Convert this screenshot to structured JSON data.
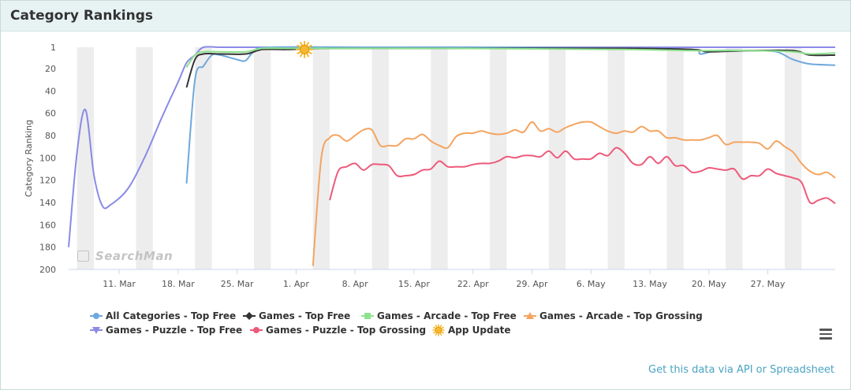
{
  "panel": {
    "title": "Category Rankings",
    "api_link": "Get this data via API or Spreadsheet",
    "watermark": "SearchMan"
  },
  "colors": {
    "header_bg": "#e7f3f3",
    "weekend_band": "#ededed",
    "all_categories": "#6fa8dc",
    "games_top_free": "#333333",
    "games_arcade_top_free": "#8ee28e",
    "games_arcade_top_grossing": "#f4a460",
    "games_puzzle_top_free": "#8a8ae6",
    "games_puzzle_top_grossing": "#ee5a7a",
    "app_update": "#f5b82e"
  },
  "chart_data": {
    "type": "line",
    "title": "",
    "ylabel": "Category Ranking",
    "y_reversed": true,
    "ylim": [
      1,
      200
    ],
    "yticks": [
      1,
      20,
      40,
      60,
      80,
      100,
      120,
      140,
      160,
      180,
      200
    ],
    "xlim": [
      "2018-03-05",
      "2018-06-04"
    ],
    "xticks": [
      {
        "date": "2018-03-11",
        "label": "11. Mar"
      },
      {
        "date": "2018-03-18",
        "label": "18. Mar"
      },
      {
        "date": "2018-03-25",
        "label": "25. Mar"
      },
      {
        "date": "2018-04-01",
        "label": "1. Apr"
      },
      {
        "date": "2018-04-08",
        "label": "8. Apr"
      },
      {
        "date": "2018-04-15",
        "label": "15. Apr"
      },
      {
        "date": "2018-04-22",
        "label": "22. Apr"
      },
      {
        "date": "2018-04-29",
        "label": "29. Apr"
      },
      {
        "date": "2018-05-06",
        "label": "6. May"
      },
      {
        "date": "2018-05-13",
        "label": "13. May"
      },
      {
        "date": "2018-05-20",
        "label": "20. May"
      },
      {
        "date": "2018-05-27",
        "label": "27. May"
      }
    ],
    "weekend_bands": [
      [
        "2018-03-06",
        "2018-03-08"
      ],
      [
        "2018-03-13",
        "2018-03-15"
      ],
      [
        "2018-03-20",
        "2018-03-22"
      ],
      [
        "2018-03-27",
        "2018-03-29"
      ],
      [
        "2018-04-03",
        "2018-04-05"
      ],
      [
        "2018-04-10",
        "2018-04-12"
      ],
      [
        "2018-04-17",
        "2018-04-19"
      ],
      [
        "2018-04-24",
        "2018-04-26"
      ],
      [
        "2018-05-01",
        "2018-05-03"
      ],
      [
        "2018-05-08",
        "2018-05-10"
      ],
      [
        "2018-05-15",
        "2018-05-17"
      ],
      [
        "2018-05-22",
        "2018-05-24"
      ],
      [
        "2018-05-29",
        "2018-05-31"
      ]
    ],
    "legend_position": "bottom",
    "series": [
      {
        "name": "Games - Puzzle - Top Free",
        "key": "games_puzzle_top_free",
        "marker": "triangle-down",
        "x": [
          "2018-03-05",
          "2018-03-06",
          "2018-03-07",
          "2018-03-08",
          "2018-03-09",
          "2018-03-10",
          "2018-03-12",
          "2018-03-14",
          "2018-03-16",
          "2018-03-18",
          "2018-03-19",
          "2018-03-20",
          "2018-03-21",
          "2018-03-23",
          "2018-03-27",
          "2018-04-02",
          "2018-04-10",
          "2018-04-20",
          "2018-05-01",
          "2018-05-10",
          "2018-05-20",
          "2018-05-28",
          "2018-06-04"
        ],
        "y": [
          180,
          95,
          57,
          115,
          143,
          142,
          128,
          100,
          65,
          32,
          15,
          8,
          1,
          1,
          1,
          1,
          1,
          1,
          1,
          1,
          1,
          1,
          1
        ]
      },
      {
        "name": "All Categories - Top Free",
        "key": "all_categories",
        "marker": "circle",
        "x": [
          "2018-03-19",
          "2018-03-20",
          "2018-03-21",
          "2018-03-22",
          "2018-03-23",
          "2018-03-25",
          "2018-03-26",
          "2018-03-27",
          "2018-03-29",
          "2018-04-10",
          "2018-04-25",
          "2018-05-10",
          "2018-05-18",
          "2018-05-19",
          "2018-05-21",
          "2018-05-25",
          "2018-05-28",
          "2018-05-30",
          "2018-06-01",
          "2018-06-04"
        ],
        "y": [
          123,
          30,
          18,
          8,
          8,
          12,
          13,
          5,
          1,
          1,
          1,
          2,
          3,
          7,
          4,
          4,
          5,
          12,
          16,
          17
        ]
      },
      {
        "name": "Games - Top Free",
        "key": "games_top_free",
        "marker": "diamond",
        "x": [
          "2018-03-19",
          "2018-03-20",
          "2018-03-21",
          "2018-03-23",
          "2018-03-26",
          "2018-03-28",
          "2018-03-31",
          "2018-04-05",
          "2018-04-20",
          "2018-05-10",
          "2018-05-18",
          "2018-05-20",
          "2018-05-25",
          "2018-05-30",
          "2018-06-01",
          "2018-06-04"
        ],
        "y": [
          37,
          12,
          7,
          7,
          7,
          3,
          3,
          2,
          2,
          2,
          3,
          5,
          4,
          4,
          8,
          8
        ]
      },
      {
        "name": "Games - Arcade - Top Free",
        "key": "games_arcade_top_free",
        "marker": "square",
        "x": [
          "2018-03-19",
          "2018-03-20",
          "2018-03-21",
          "2018-03-23",
          "2018-03-26",
          "2018-03-28",
          "2018-03-31",
          "2018-04-05",
          "2018-04-20",
          "2018-05-10",
          "2018-05-18",
          "2018-05-20",
          "2018-05-25",
          "2018-05-30",
          "2018-06-01",
          "2018-06-04"
        ],
        "y": [
          19,
          8,
          5,
          5,
          5,
          2,
          2,
          2,
          2,
          3,
          4,
          4,
          4,
          5,
          7,
          6
        ]
      },
      {
        "name": "Games - Arcade - Top Grossing",
        "key": "games_arcade_top_grossing",
        "marker": "triangle",
        "x": [
          "2018-04-03",
          "2018-04-04",
          "2018-04-05",
          "2018-04-06",
          "2018-04-07",
          "2018-04-08",
          "2018-04-09",
          "2018-04-10",
          "2018-04-11",
          "2018-04-12",
          "2018-04-13",
          "2018-04-14",
          "2018-04-15",
          "2018-04-16",
          "2018-04-17",
          "2018-04-18",
          "2018-04-19",
          "2018-04-20",
          "2018-04-21",
          "2018-04-22",
          "2018-04-23",
          "2018-04-24",
          "2018-04-25",
          "2018-04-26",
          "2018-04-27",
          "2018-04-28",
          "2018-04-29",
          "2018-04-30",
          "2018-05-01",
          "2018-05-02",
          "2018-05-03",
          "2018-05-04",
          "2018-05-05",
          "2018-05-06",
          "2018-05-07",
          "2018-05-08",
          "2018-05-09",
          "2018-05-10",
          "2018-05-11",
          "2018-05-12",
          "2018-05-13",
          "2018-05-14",
          "2018-05-15",
          "2018-05-16",
          "2018-05-17",
          "2018-05-18",
          "2018-05-19",
          "2018-05-20",
          "2018-05-21",
          "2018-05-22",
          "2018-05-23",
          "2018-05-24",
          "2018-05-25",
          "2018-05-26",
          "2018-05-27",
          "2018-05-28",
          "2018-05-29",
          "2018-05-30",
          "2018-05-31",
          "2018-06-01",
          "2018-06-02",
          "2018-06-03",
          "2018-06-04"
        ],
        "y": [
          197,
          100,
          82,
          80,
          85,
          80,
          75,
          75,
          89,
          89,
          89,
          83,
          83,
          79,
          85,
          89,
          91,
          81,
          78,
          78,
          76,
          78,
          79,
          78,
          75,
          77,
          68,
          76,
          74,
          77,
          73,
          70,
          68,
          68,
          72,
          76,
          78,
          76,
          77,
          72,
          76,
          76,
          82,
          82,
          84,
          84,
          84,
          82,
          80,
          88,
          86,
          86,
          86,
          87,
          92,
          85,
          90,
          95,
          105,
          112,
          115,
          113,
          118
        ]
      },
      {
        "name": "Games - Puzzle - Top Grossing",
        "key": "games_puzzle_top_grossing",
        "marker": "circle",
        "x": [
          "2018-04-05",
          "2018-04-06",
          "2018-04-07",
          "2018-04-08",
          "2018-04-09",
          "2018-04-10",
          "2018-04-11",
          "2018-04-12",
          "2018-04-13",
          "2018-04-14",
          "2018-04-15",
          "2018-04-16",
          "2018-04-17",
          "2018-04-18",
          "2018-04-19",
          "2018-04-20",
          "2018-04-21",
          "2018-04-22",
          "2018-04-23",
          "2018-04-24",
          "2018-04-25",
          "2018-04-26",
          "2018-04-27",
          "2018-04-28",
          "2018-04-29",
          "2018-04-30",
          "2018-05-01",
          "2018-05-02",
          "2018-05-03",
          "2018-05-04",
          "2018-05-05",
          "2018-05-06",
          "2018-05-07",
          "2018-05-08",
          "2018-05-09",
          "2018-05-10",
          "2018-05-11",
          "2018-05-12",
          "2018-05-13",
          "2018-05-14",
          "2018-05-15",
          "2018-05-16",
          "2018-05-17",
          "2018-05-18",
          "2018-05-19",
          "2018-05-20",
          "2018-05-21",
          "2018-05-22",
          "2018-05-23",
          "2018-05-24",
          "2018-05-25",
          "2018-05-26",
          "2018-05-27",
          "2018-05-28",
          "2018-05-29",
          "2018-05-30",
          "2018-05-31",
          "2018-06-01",
          "2018-06-02",
          "2018-06-03",
          "2018-06-04"
        ],
        "y": [
          138,
          112,
          108,
          105,
          111,
          106,
          106,
          107,
          116,
          116,
          115,
          111,
          110,
          103,
          108,
          108,
          108,
          106,
          105,
          105,
          103,
          99,
          100,
          98,
          98,
          99,
          94,
          100,
          94,
          101,
          101,
          101,
          96,
          98,
          91,
          96,
          105,
          106,
          99,
          105,
          99,
          107,
          107,
          113,
          112,
          109,
          110,
          111,
          110,
          119,
          116,
          116,
          110,
          114,
          116,
          118,
          122,
          140,
          138,
          136,
          141
        ]
      }
    ],
    "events": [
      {
        "name": "App Update",
        "key": "app_update",
        "marker": "sun",
        "x": "2018-04-02",
        "y": 3
      }
    ]
  }
}
